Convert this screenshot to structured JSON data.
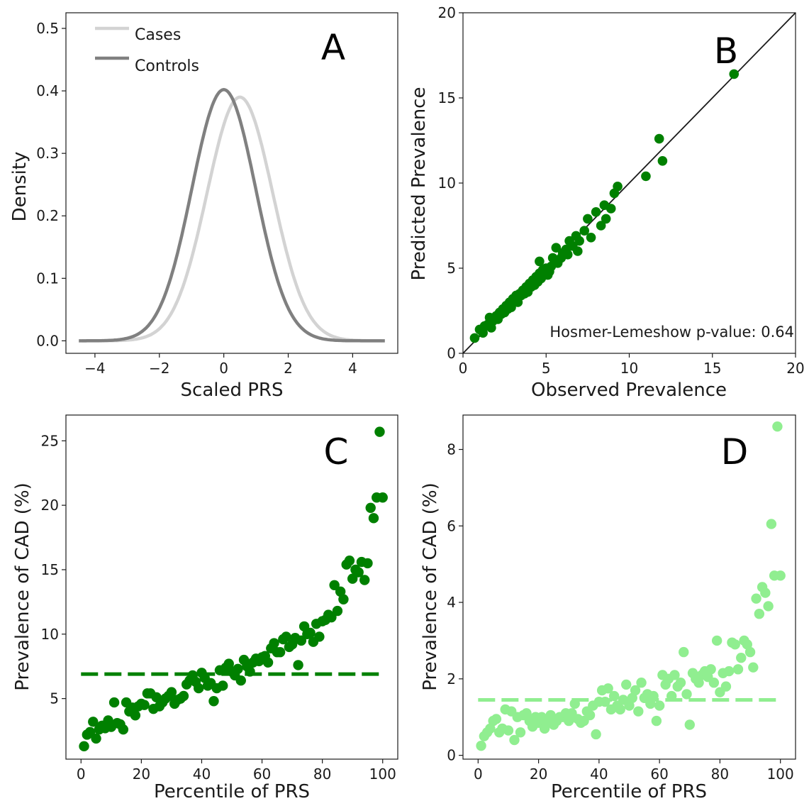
{
  "colors": {
    "cases": "#d3d3d3",
    "controls": "#808080",
    "dark_green": "#008000",
    "light_green": "#90ee90",
    "identity_line": "#1a1a1a"
  },
  "chart_data": [
    {
      "panel": "A",
      "type": "line",
      "xlabel": "Scaled PRS",
      "ylabel": "Density",
      "xlim": [
        -4.9,
        5.4
      ],
      "ylim": [
        -0.02,
        0.525
      ],
      "xticks": [
        -4,
        -2,
        0,
        2,
        4
      ],
      "xtick_labels": [
        "−4",
        "−2",
        "0",
        "2",
        "4"
      ],
      "yticks": [
        0.0,
        0.1,
        0.2,
        0.3,
        0.4,
        0.5
      ],
      "ytick_labels": [
        "0.0",
        "0.1",
        "0.2",
        "0.3",
        "0.4",
        "0.5"
      ],
      "legend_position": "upper-left",
      "series": [
        {
          "name": "Cases",
          "color_key": "cases",
          "mean": 0.5,
          "sd": 1.02,
          "peak": 0.39,
          "x_range": [
            -4.4,
            4.9
          ]
        },
        {
          "name": "Controls",
          "color_key": "controls",
          "mean": 0.0,
          "sd": 0.99,
          "peak": 0.402,
          "x_range": [
            -4.5,
            5.0
          ]
        }
      ]
    },
    {
      "panel": "B",
      "type": "scatter",
      "xlabel": "Observed Prevalence",
      "ylabel": "Predicted Prevalence",
      "xlim": [
        0,
        20
      ],
      "ylim": [
        0,
        20
      ],
      "xticks": [
        0,
        5,
        10,
        15,
        20
      ],
      "yticks": [
        0,
        5,
        10,
        15,
        20
      ],
      "annotation": "Hosmer-Lemeshow p-value: 0.64",
      "identity_line": true,
      "color_key": "dark_green",
      "points": [
        [
          0.7,
          0.9
        ],
        [
          1.0,
          1.4
        ],
        [
          1.2,
          1.2
        ],
        [
          1.3,
          1.6
        ],
        [
          1.5,
          1.7
        ],
        [
          1.6,
          2.1
        ],
        [
          1.7,
          1.5
        ],
        [
          1.8,
          1.9
        ],
        [
          1.9,
          2.0
        ],
        [
          2.0,
          2.2
        ],
        [
          2.1,
          2.0
        ],
        [
          2.2,
          2.4
        ],
        [
          2.3,
          2.3
        ],
        [
          2.4,
          2.6
        ],
        [
          2.5,
          2.4
        ],
        [
          2.6,
          2.8
        ],
        [
          2.7,
          2.6
        ],
        [
          2.8,
          3.0
        ],
        [
          2.9,
          2.7
        ],
        [
          3.0,
          3.2
        ],
        [
          3.1,
          3.1
        ],
        [
          3.2,
          3.4
        ],
        [
          3.3,
          3.0
        ],
        [
          3.4,
          3.5
        ],
        [
          3.5,
          3.4
        ],
        [
          3.6,
          3.7
        ],
        [
          3.7,
          3.5
        ],
        [
          3.8,
          3.9
        ],
        [
          3.9,
          3.6
        ],
        [
          4.0,
          4.1
        ],
        [
          4.1,
          3.9
        ],
        [
          4.2,
          4.3
        ],
        [
          4.3,
          4.0
        ],
        [
          4.4,
          4.5
        ],
        [
          4.5,
          4.2
        ],
        [
          4.6,
          4.7
        ],
        [
          4.7,
          4.4
        ],
        [
          4.8,
          4.9
        ],
        [
          4.9,
          4.6
        ],
        [
          5.0,
          5.0
        ],
        [
          5.2,
          4.8
        ],
        [
          5.3,
          5.1
        ],
        [
          5.4,
          5.6
        ],
        [
          5.6,
          6.2
        ],
        [
          5.7,
          5.3
        ],
        [
          5.9,
          5.6
        ],
        [
          6.0,
          5.9
        ],
        [
          6.2,
          6.1
        ],
        [
          6.3,
          5.8
        ],
        [
          6.4,
          6.6
        ],
        [
          6.6,
          6.3
        ],
        [
          6.8,
          6.9
        ],
        [
          6.9,
          6.0
        ],
        [
          7.0,
          6.6
        ],
        [
          7.3,
          7.2
        ],
        [
          7.5,
          7.9
        ],
        [
          7.7,
          6.8
        ],
        [
          8.0,
          8.3
        ],
        [
          8.3,
          7.5
        ],
        [
          8.5,
          8.7
        ],
        [
          8.6,
          7.9
        ],
        [
          8.9,
          8.5
        ],
        [
          9.1,
          9.4
        ],
        [
          9.3,
          9.8
        ],
        [
          11.0,
          10.4
        ],
        [
          11.8,
          12.6
        ],
        [
          12.0,
          11.3
        ],
        [
          16.3,
          16.4
        ],
        [
          4.6,
          5.4
        ],
        [
          5.1,
          4.6
        ]
      ]
    },
    {
      "panel": "C",
      "type": "scatter",
      "xlabel": "Percentile of PRS",
      "ylabel": "Prevalence of CAD (%)",
      "xlim": [
        -5,
        105
      ],
      "ylim": [
        0.3,
        27
      ],
      "xticks": [
        0,
        20,
        40,
        60,
        80,
        100
      ],
      "yticks": [
        5,
        10,
        15,
        20,
        25
      ],
      "color_key": "dark_green",
      "reference_line_y": 6.9,
      "x": [
        1,
        2,
        3,
        4,
        5,
        6,
        7,
        8,
        9,
        10,
        11,
        12,
        13,
        14,
        15,
        16,
        17,
        18,
        19,
        20,
        21,
        22,
        23,
        24,
        25,
        26,
        27,
        28,
        29,
        30,
        31,
        32,
        33,
        34,
        35,
        36,
        37,
        38,
        39,
        40,
        41,
        42,
        43,
        44,
        45,
        46,
        47,
        48,
        49,
        50,
        51,
        52,
        53,
        54,
        55,
        56,
        57,
        58,
        59,
        60,
        61,
        62,
        63,
        64,
        65,
        66,
        67,
        68,
        69,
        70,
        71,
        72,
        73,
        74,
        75,
        76,
        77,
        78,
        79,
        80,
        81,
        82,
        83,
        84,
        85,
        86,
        87,
        88,
        89,
        90,
        91,
        92,
        93,
        94,
        95,
        96,
        97,
        98,
        99,
        100
      ],
      "values": [
        1.3,
        2.2,
        2.4,
        3.2,
        1.9,
        2.6,
        2.9,
        2.7,
        3.3,
        2.8,
        4.7,
        3.1,
        3.0,
        2.6,
        4.7,
        4.0,
        4.3,
        3.7,
        4.4,
        4.6,
        4.5,
        5.4,
        5.4,
        4.2,
        5.1,
        4.4,
        4.7,
        5.0,
        5.2,
        5.5,
        4.6,
        4.9,
        5.0,
        5.2,
        6.1,
        6.4,
        6.8,
        6.3,
        5.8,
        7.0,
        6.6,
        6.0,
        6.2,
        4.8,
        5.8,
        7.2,
        6.0,
        7.4,
        7.7,
        7.1,
        6.8,
        7.3,
        6.4,
        8.0,
        7.5,
        7.1,
        7.8,
        8.1,
        7.9,
        8.2,
        8.3,
        7.8,
        8.9,
        9.3,
        8.6,
        8.6,
        9.6,
        9.8,
        9.0,
        9.2,
        9.7,
        7.6,
        9.5,
        10.6,
        10.0,
        10.1,
        9.4,
        10.8,
        9.8,
        11.0,
        11.1,
        11.5,
        11.3,
        13.8,
        11.8,
        13.3,
        12.7,
        15.4,
        15.7,
        14.3,
        15.0,
        14.8,
        15.6,
        14.2,
        15.5,
        19.8,
        19.0,
        20.6,
        25.7,
        20.6
      ]
    },
    {
      "panel": "D",
      "type": "scatter",
      "xlabel": "Percentile of PRS",
      "ylabel": "Prevalence of CAD (%)",
      "xlim": [
        -5,
        105
      ],
      "ylim": [
        -0.1,
        8.9
      ],
      "xticks": [
        0,
        20,
        40,
        60,
        80,
        100
      ],
      "yticks": [
        0,
        2,
        4,
        6,
        8
      ],
      "color_key": "light_green",
      "reference_line_y": 1.45,
      "x": [
        1,
        2,
        3,
        4,
        5,
        6,
        7,
        8,
        9,
        10,
        11,
        12,
        13,
        14,
        15,
        16,
        17,
        18,
        19,
        20,
        21,
        22,
        23,
        24,
        25,
        26,
        27,
        28,
        29,
        30,
        31,
        32,
        33,
        34,
        35,
        36,
        37,
        38,
        39,
        40,
        41,
        42,
        43,
        44,
        45,
        46,
        47,
        48,
        49,
        50,
        51,
        52,
        53,
        54,
        55,
        56,
        57,
        58,
        59,
        60,
        61,
        62,
        63,
        64,
        65,
        66,
        67,
        68,
        69,
        70,
        71,
        72,
        73,
        74,
        75,
        76,
        77,
        78,
        79,
        80,
        81,
        82,
        83,
        84,
        85,
        86,
        87,
        88,
        89,
        90,
        91,
        92,
        93,
        94,
        95,
        96,
        97,
        98,
        99,
        100
      ],
      "values": [
        0.25,
        0.5,
        0.6,
        0.7,
        0.9,
        0.95,
        0.6,
        0.7,
        1.2,
        0.65,
        1.15,
        0.4,
        1.0,
        0.6,
        1.05,
        1.1,
        0.9,
        0.75,
        1.0,
        0.85,
        1.0,
        0.7,
        0.9,
        1.05,
        0.8,
        0.9,
        1.0,
        1.0,
        1.1,
        0.9,
        1.1,
        1.35,
        0.95,
        0.85,
        0.9,
        1.15,
        1.05,
        1.3,
        0.55,
        1.4,
        1.7,
        1.4,
        1.75,
        1.2,
        1.55,
        1.3,
        1.2,
        1.45,
        1.85,
        1.3,
        1.5,
        1.7,
        1.15,
        1.9,
        1.5,
        1.6,
        1.35,
        1.55,
        0.9,
        1.3,
        2.1,
        1.85,
        2.0,
        1.55,
        2.1,
        1.8,
        1.9,
        2.7,
        1.6,
        0.8,
        2.15,
        2.0,
        1.9,
        2.1,
        2.2,
        2.05,
        2.25,
        1.9,
        3.0,
        1.65,
        2.15,
        1.8,
        2.2,
        2.95,
        2.9,
        2.25,
        2.55,
        3.0,
        2.9,
        2.7,
        2.3,
        4.1,
        3.7,
        4.4,
        4.25,
        3.9,
        6.05,
        4.7,
        8.6,
        4.7
      ]
    }
  ]
}
